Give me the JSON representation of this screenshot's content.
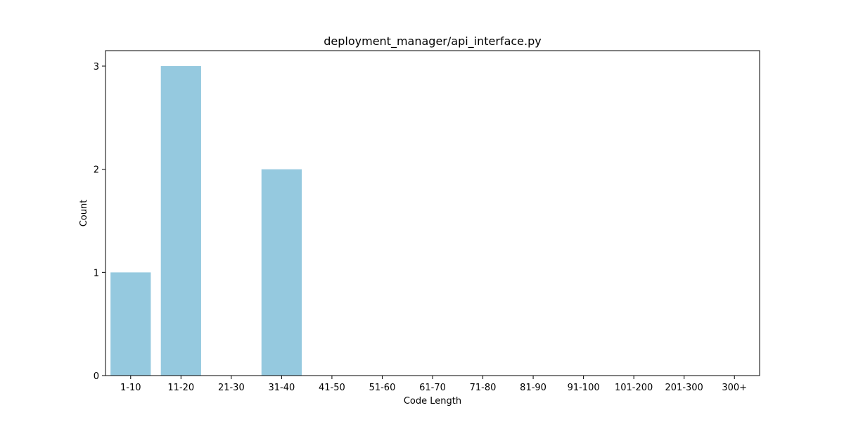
{
  "chart_data": {
    "type": "bar",
    "title": "deployment_manager/api_interface.py",
    "xlabel": "Code Length",
    "ylabel": "Count",
    "categories": [
      "1-10",
      "11-20",
      "21-30",
      "31-40",
      "41-50",
      "51-60",
      "61-70",
      "71-80",
      "81-90",
      "91-100",
      "101-200",
      "201-300",
      "300+"
    ],
    "values": [
      1,
      3,
      0,
      2,
      0,
      0,
      0,
      0,
      0,
      0,
      0,
      0,
      0
    ],
    "yticks": [
      0,
      1,
      2,
      3
    ],
    "ylim": [
      0,
      3.15
    ],
    "grid": false,
    "legend": "none",
    "bar_color": "#95c9df"
  }
}
